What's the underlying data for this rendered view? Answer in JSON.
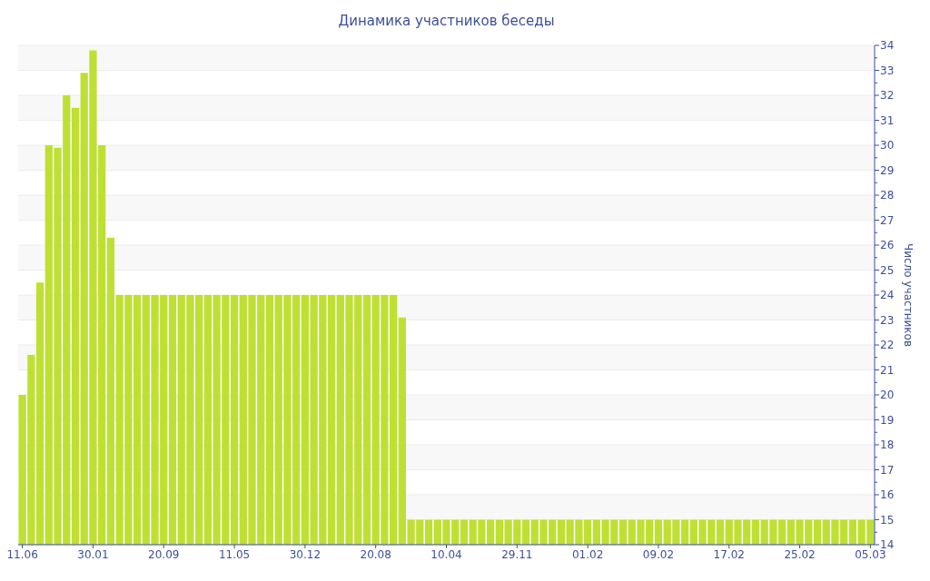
{
  "chart_data": {
    "type": "bar",
    "title": "Динамика участников беседы",
    "y2label": "Число участников",
    "categories": [
      "11.06",
      null,
      null,
      null,
      null,
      null,
      null,
      null,
      "30.01",
      null,
      null,
      null,
      null,
      null,
      null,
      null,
      "20.09",
      null,
      null,
      null,
      null,
      null,
      null,
      null,
      "11.05",
      null,
      null,
      null,
      null,
      null,
      null,
      null,
      "30.12",
      null,
      null,
      null,
      null,
      null,
      null,
      null,
      "20.08",
      null,
      null,
      null,
      null,
      null,
      null,
      null,
      "10.04",
      null,
      null,
      null,
      null,
      null,
      null,
      null,
      "29.11",
      null,
      null,
      null,
      null,
      null,
      null,
      null,
      "01.02",
      null,
      null,
      null,
      null,
      null,
      null,
      null,
      "09.02",
      null,
      null,
      null,
      null,
      null,
      null,
      null,
      "17.02",
      null,
      null,
      null,
      null,
      null,
      null,
      null,
      "25.02",
      null,
      null,
      null,
      null,
      null,
      null,
      null,
      "05.03"
    ],
    "series": [
      {
        "color": "#bfe033",
        "axis": "y2",
        "values": [
          20,
          21.6,
          24.5,
          30,
          29.9,
          32,
          31.5,
          32.9,
          33.8,
          30,
          26.3,
          24,
          24,
          24,
          24,
          24,
          24,
          24,
          24,
          24,
          24,
          24,
          24,
          24,
          24,
          24,
          24,
          24,
          24,
          24,
          24,
          24,
          24,
          24,
          24,
          24,
          24,
          24,
          24,
          24,
          24,
          24,
          24,
          23.1,
          15,
          15,
          15,
          15,
          15,
          15,
          15,
          15,
          15,
          15,
          15,
          15,
          15,
          15,
          15,
          15,
          15,
          15,
          15,
          15,
          15,
          15,
          15,
          15,
          15,
          15,
          15,
          15,
          15,
          15,
          15,
          15,
          15,
          15,
          15,
          15,
          15,
          15,
          15,
          15,
          15,
          15,
          15,
          15,
          15,
          15,
          15,
          15,
          15,
          15,
          15,
          15,
          15
        ]
      }
    ],
    "y2lim": [
      14,
      34
    ],
    "y2ticks": [
      14,
      {
        "value": 14.5,
        "label": null
      },
      15,
      {
        "value": 15.5,
        "label": null
      },
      16,
      {
        "value": 16.5,
        "label": null
      },
      17,
      {
        "value": 17.5,
        "label": null
      },
      18,
      {
        "value": 18.5,
        "label": null
      },
      19,
      {
        "value": 19.5,
        "label": null
      },
      20,
      {
        "value": 20.5,
        "label": null
      },
      21,
      {
        "value": 21.5,
        "label": null
      },
      22,
      {
        "value": 22.5,
        "label": null
      },
      23,
      {
        "value": 23.5,
        "label": null
      },
      24,
      {
        "value": 24.5,
        "label": null
      },
      25,
      {
        "value": 25.5,
        "label": null
      },
      26,
      {
        "value": 26.5,
        "label": null
      },
      27,
      {
        "value": 27.5,
        "label": null
      },
      28,
      {
        "value": 28.5,
        "label": null
      },
      29,
      {
        "value": 29.5,
        "label": null
      },
      30,
      {
        "value": 30.5,
        "label": null
      },
      31,
      {
        "value": 31.5,
        "label": null
      },
      32,
      {
        "value": 32.5,
        "label": null
      },
      33,
      {
        "value": 33.5,
        "label": null
      },
      34
    ],
    "grid": "y"
  }
}
